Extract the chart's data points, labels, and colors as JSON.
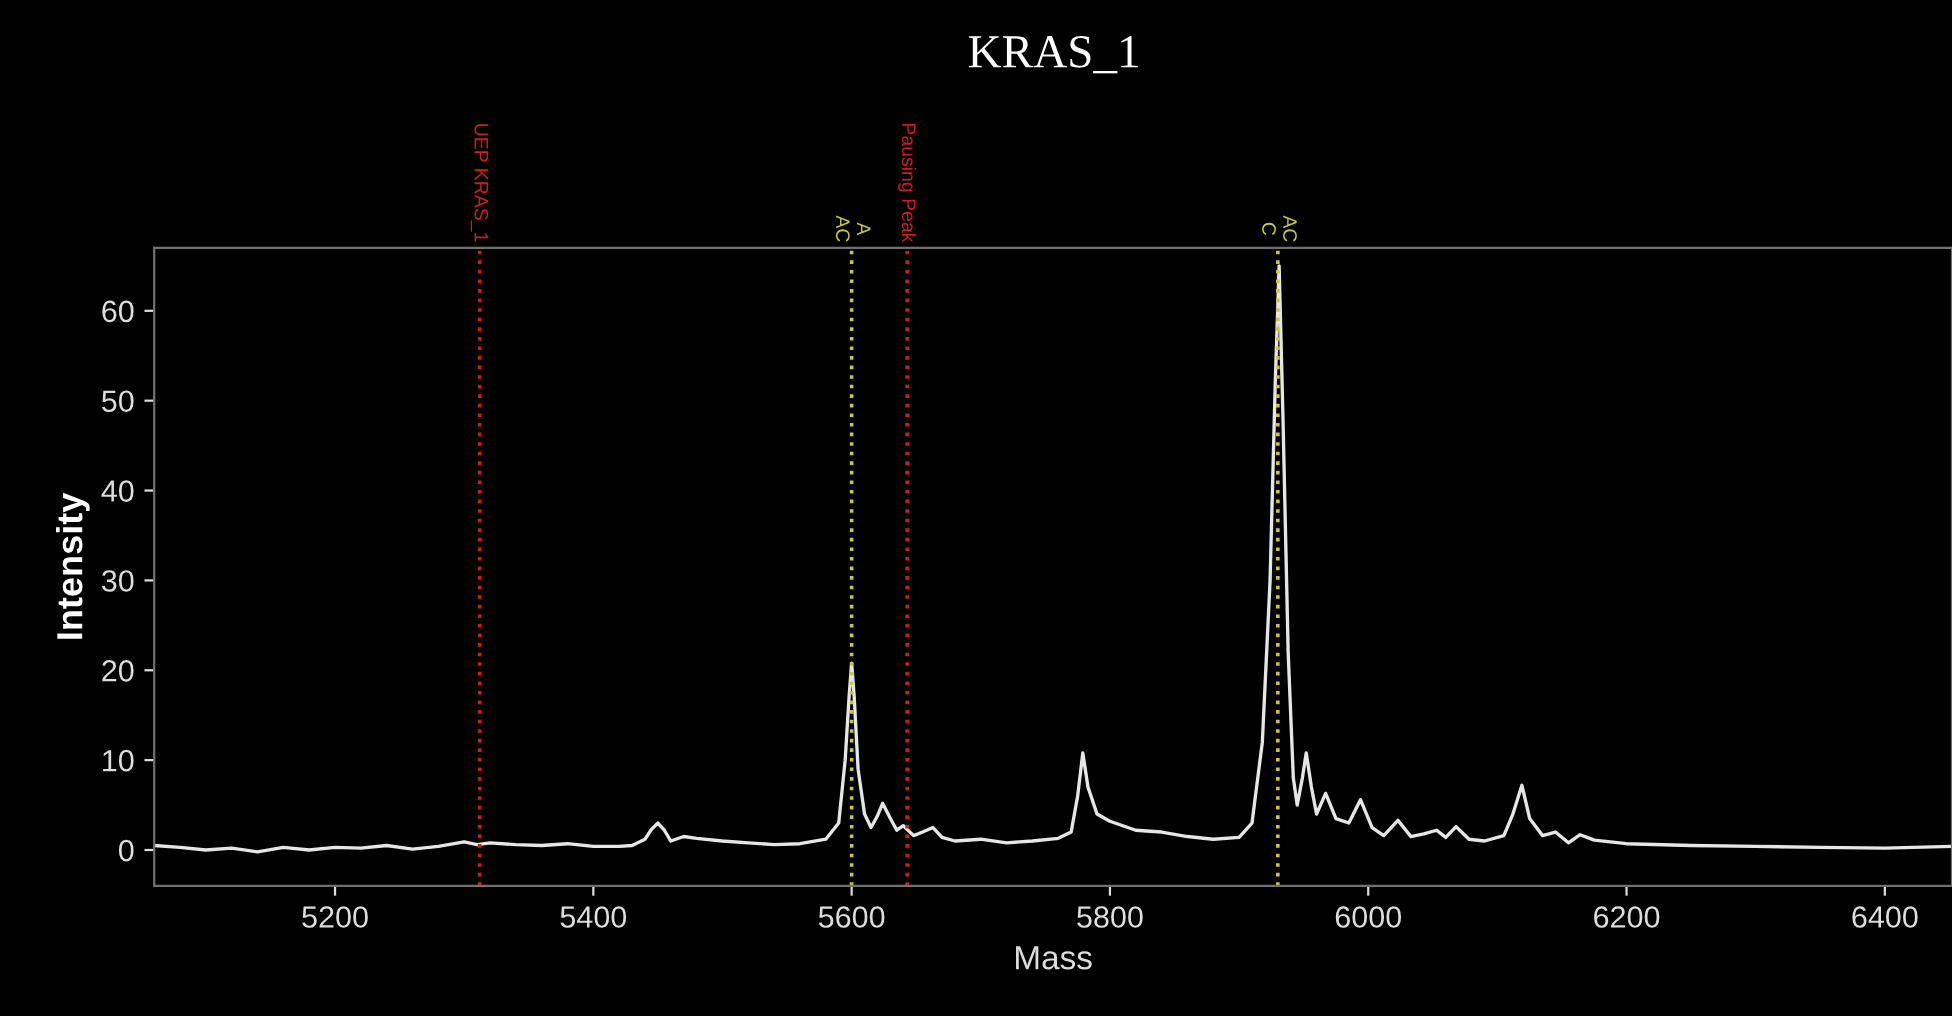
{
  "chart_data": {
    "type": "line",
    "title": "KRAS_1",
    "xlabel": "Mass",
    "ylabel": "Intensity",
    "x": [
      5060,
      5080,
      5100,
      5120,
      5140,
      5160,
      5180,
      5200,
      5220,
      5240,
      5260,
      5280,
      5300,
      5310,
      5320,
      5340,
      5360,
      5380,
      5400,
      5420,
      5430,
      5440,
      5445,
      5450,
      5455,
      5460,
      5470,
      5480,
      5500,
      5520,
      5540,
      5560,
      5580,
      5590,
      5595,
      5598,
      5600,
      5602,
      5605,
      5610,
      5615,
      5620,
      5624,
      5630,
      5635,
      5640,
      5648,
      5655,
      5663,
      5670,
      5680,
      5700,
      5720,
      5740,
      5760,
      5770,
      5775,
      5779,
      5783,
      5790,
      5800,
      5820,
      5840,
      5860,
      5880,
      5900,
      5910,
      5918,
      5924,
      5928,
      5931,
      5934,
      5938,
      5942,
      5945,
      5949,
      5952,
      5956,
      5960,
      5967,
      5975,
      5985,
      5994,
      6003,
      6012,
      6023,
      6033,
      6043,
      6053,
      6060,
      6068,
      6078,
      6090,
      6105,
      6112,
      6119,
      6125,
      6135,
      6145,
      6155,
      6164,
      6175,
      6200,
      6250,
      6300,
      6350,
      6400,
      6452
    ],
    "values": [
      0.5,
      0.3,
      0.0,
      0.2,
      -0.2,
      0.3,
      0.0,
      0.3,
      0.2,
      0.5,
      0.1,
      0.4,
      0.9,
      0.6,
      0.8,
      0.6,
      0.5,
      0.7,
      0.4,
      0.4,
      0.5,
      1.2,
      2.3,
      3.0,
      2.2,
      1.0,
      1.5,
      1.3,
      1.0,
      0.8,
      0.6,
      0.7,
      1.2,
      3.0,
      10.0,
      17.0,
      20.8,
      17.0,
      9.0,
      4.0,
      2.5,
      3.8,
      5.2,
      3.5,
      2.2,
      2.7,
      1.6,
      2.0,
      2.5,
      1.4,
      1.0,
      1.2,
      0.8,
      1.0,
      1.3,
      2.0,
      6.0,
      10.8,
      7.0,
      4.0,
      3.2,
      2.2,
      2.0,
      1.5,
      1.2,
      1.4,
      3.0,
      12.0,
      30.0,
      52.0,
      65.0,
      48.0,
      22.0,
      8.0,
      5.0,
      8.0,
      10.8,
      7.0,
      4.0,
      6.3,
      3.5,
      3.0,
      5.6,
      2.5,
      1.6,
      3.3,
      1.5,
      1.8,
      2.2,
      1.4,
      2.6,
      1.2,
      1.0,
      1.6,
      4.0,
      7.2,
      3.5,
      1.6,
      2.0,
      0.8,
      1.7,
      1.1,
      0.7,
      0.5,
      0.4,
      0.3,
      0.2,
      0.4
    ],
    "color": "#e6e6e6",
    "xlim": [
      5060,
      6452
    ],
    "ylim": [
      -4,
      67
    ],
    "xticks": [
      5200,
      5400,
      5600,
      5800,
      6000,
      6200,
      6400
    ],
    "yticks": [
      0,
      10,
      20,
      30,
      40,
      50,
      60
    ],
    "grid": false,
    "legend": false,
    "ref_lines": [
      {
        "axis": "x",
        "value": 5312,
        "label": "UEP KRAS_1",
        "color": "#d01c1c",
        "line_style": "dotted"
      },
      {
        "axis": "x",
        "value": 5600,
        "label": "A\nAC",
        "color": "#c8c83c",
        "line_style": "dotted"
      },
      {
        "axis": "x",
        "value": 5643,
        "label": "Pausing Peak",
        "color": "#d01c1c",
        "line_style": "dotted"
      },
      {
        "axis": "x",
        "value": 5930,
        "label": "AC\nC",
        "color": "#c8c83c",
        "line_style": "dotted"
      }
    ]
  }
}
